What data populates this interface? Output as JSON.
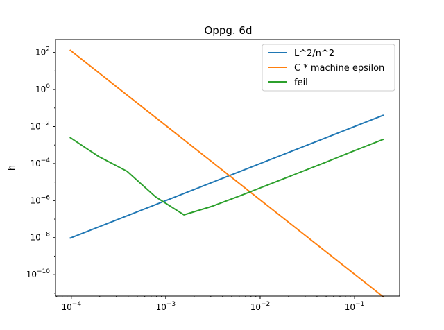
{
  "chart_data": {
    "type": "line",
    "title": "Oppg. 6d",
    "xlabel": "",
    "ylabel": "h",
    "xscale": "log",
    "yscale": "log",
    "xlim": [
      6.8e-05,
      0.3
    ],
    "ylim": [
      7e-12,
      500
    ],
    "grid": false,
    "legend_position": "top-right",
    "x_ticks": [
      0.0001,
      0.001,
      0.01,
      0.1
    ],
    "x_tick_labels": [
      {
        "mantissa": "10",
        "exp": "−4"
      },
      {
        "mantissa": "10",
        "exp": "−3"
      },
      {
        "mantissa": "10",
        "exp": "−2"
      },
      {
        "mantissa": "10",
        "exp": "−1"
      }
    ],
    "y_ticks": [
      1e-10,
      1e-08,
      1e-06,
      0.0001,
      0.01,
      1,
      100
    ],
    "y_tick_labels": [
      {
        "mantissa": "10",
        "exp": "−10"
      },
      {
        "mantissa": "10",
        "exp": "−8"
      },
      {
        "mantissa": "10",
        "exp": "−6"
      },
      {
        "mantissa": "10",
        "exp": "−4"
      },
      {
        "mantissa": "10",
        "exp": "−2"
      },
      {
        "mantissa": "10",
        "exp": "0"
      },
      {
        "mantissa": "10",
        "exp": "2"
      }
    ],
    "series": [
      {
        "name": "L^2/n^2",
        "color": "#1f77b4",
        "x": [
          9.77e-05,
          0.2
        ],
        "y": [
          9.5e-09,
          0.04
        ]
      },
      {
        "name": "C * machine epsilon",
        "color": "#ff7f0e",
        "x": [
          9.77e-05,
          0.2
        ],
        "y": [
          130,
          6.5e-12
        ]
      },
      {
        "name": "feil",
        "color": "#2ca02c",
        "x": [
          9.77e-05,
          0.000195,
          0.00039,
          0.00078,
          0.00156,
          0.003125,
          0.00625,
          0.0125,
          0.025,
          0.05,
          0.1,
          0.2
        ],
        "y": [
          0.0025,
          0.00024,
          3.8e-05,
          1.6e-06,
          1.7e-07,
          5e-07,
          1.9e-06,
          7.5e-06,
          3e-05,
          0.00012,
          0.0005,
          0.002
        ]
      }
    ]
  }
}
